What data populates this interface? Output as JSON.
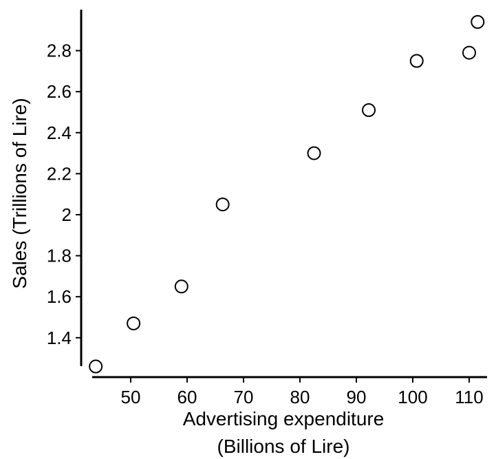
{
  "chart_data": {
    "type": "scatter",
    "title": "",
    "xlabel_lines": [
      "Advertising expenditure",
      "(Billions of Lire)"
    ],
    "ylabel": "Sales (Trillions of Lire)",
    "x_ticks": [
      50,
      60,
      70,
      80,
      90,
      100,
      110
    ],
    "y_ticks": [
      1.4,
      1.6,
      1.8,
      2,
      2.2,
      2.4,
      2.6,
      2.8
    ],
    "xlim": [
      43,
      112
    ],
    "ylim": [
      1.25,
      2.97
    ],
    "grid": false,
    "points": [
      {
        "x": 43.8,
        "y": 1.26
      },
      {
        "x": 50.5,
        "y": 1.47
      },
      {
        "x": 59.0,
        "y": 1.65
      },
      {
        "x": 66.3,
        "y": 2.05
      },
      {
        "x": 82.5,
        "y": 2.3
      },
      {
        "x": 92.2,
        "y": 2.51
      },
      {
        "x": 100.7,
        "y": 2.75
      },
      {
        "x": 110.0,
        "y": 2.79
      },
      {
        "x": 111.5,
        "y": 2.94
      }
    ],
    "marker_color": "#ffffff",
    "marker_edge_color": "#000000"
  }
}
